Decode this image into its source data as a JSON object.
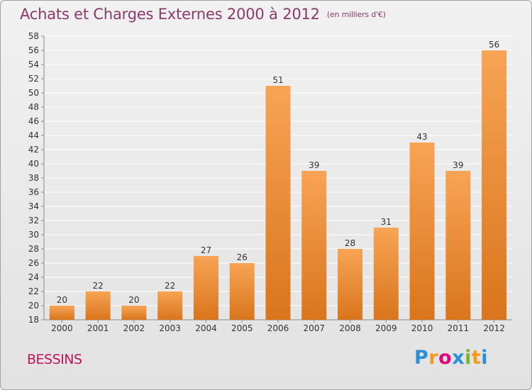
{
  "header": {
    "title": "Achats et Charges Externes 2000 à 2012",
    "unit": "(en milliers d'€)"
  },
  "footer": {
    "location": "BESSINS",
    "logo_letters": [
      "P",
      "r",
      "o",
      "x",
      "i",
      "t",
      "i"
    ],
    "logo_colors": [
      "#2b8fd6",
      "#f29a1e",
      "#e4007c",
      "#2b8fd6",
      "#78b52e",
      "#f29a1e",
      "#2b8fd6"
    ]
  },
  "chart_data": {
    "type": "bar",
    "title": "Achats et Charges Externes 2000 à 2012",
    "subtitle": "(en milliers d'€)",
    "xlabel": "",
    "ylabel": "",
    "categories": [
      "2000",
      "2001",
      "2002",
      "2003",
      "2004",
      "2005",
      "2006",
      "2007",
      "2008",
      "2009",
      "2010",
      "2011",
      "2012"
    ],
    "values": [
      20,
      22,
      20,
      22,
      27,
      26,
      51,
      39,
      28,
      31,
      43,
      39,
      56
    ],
    "ylim": [
      18,
      58
    ],
    "yticks": [
      18,
      20,
      22,
      24,
      26,
      28,
      30,
      32,
      34,
      36,
      38,
      40,
      42,
      44,
      46,
      48,
      50,
      52,
      54,
      56,
      58
    ],
    "grid": true,
    "legend": "none",
    "colors": {
      "bar_light": "#f7a455",
      "bar_dark": "#d9751c",
      "grid": "#ffffff",
      "axis": "#888888"
    }
  }
}
